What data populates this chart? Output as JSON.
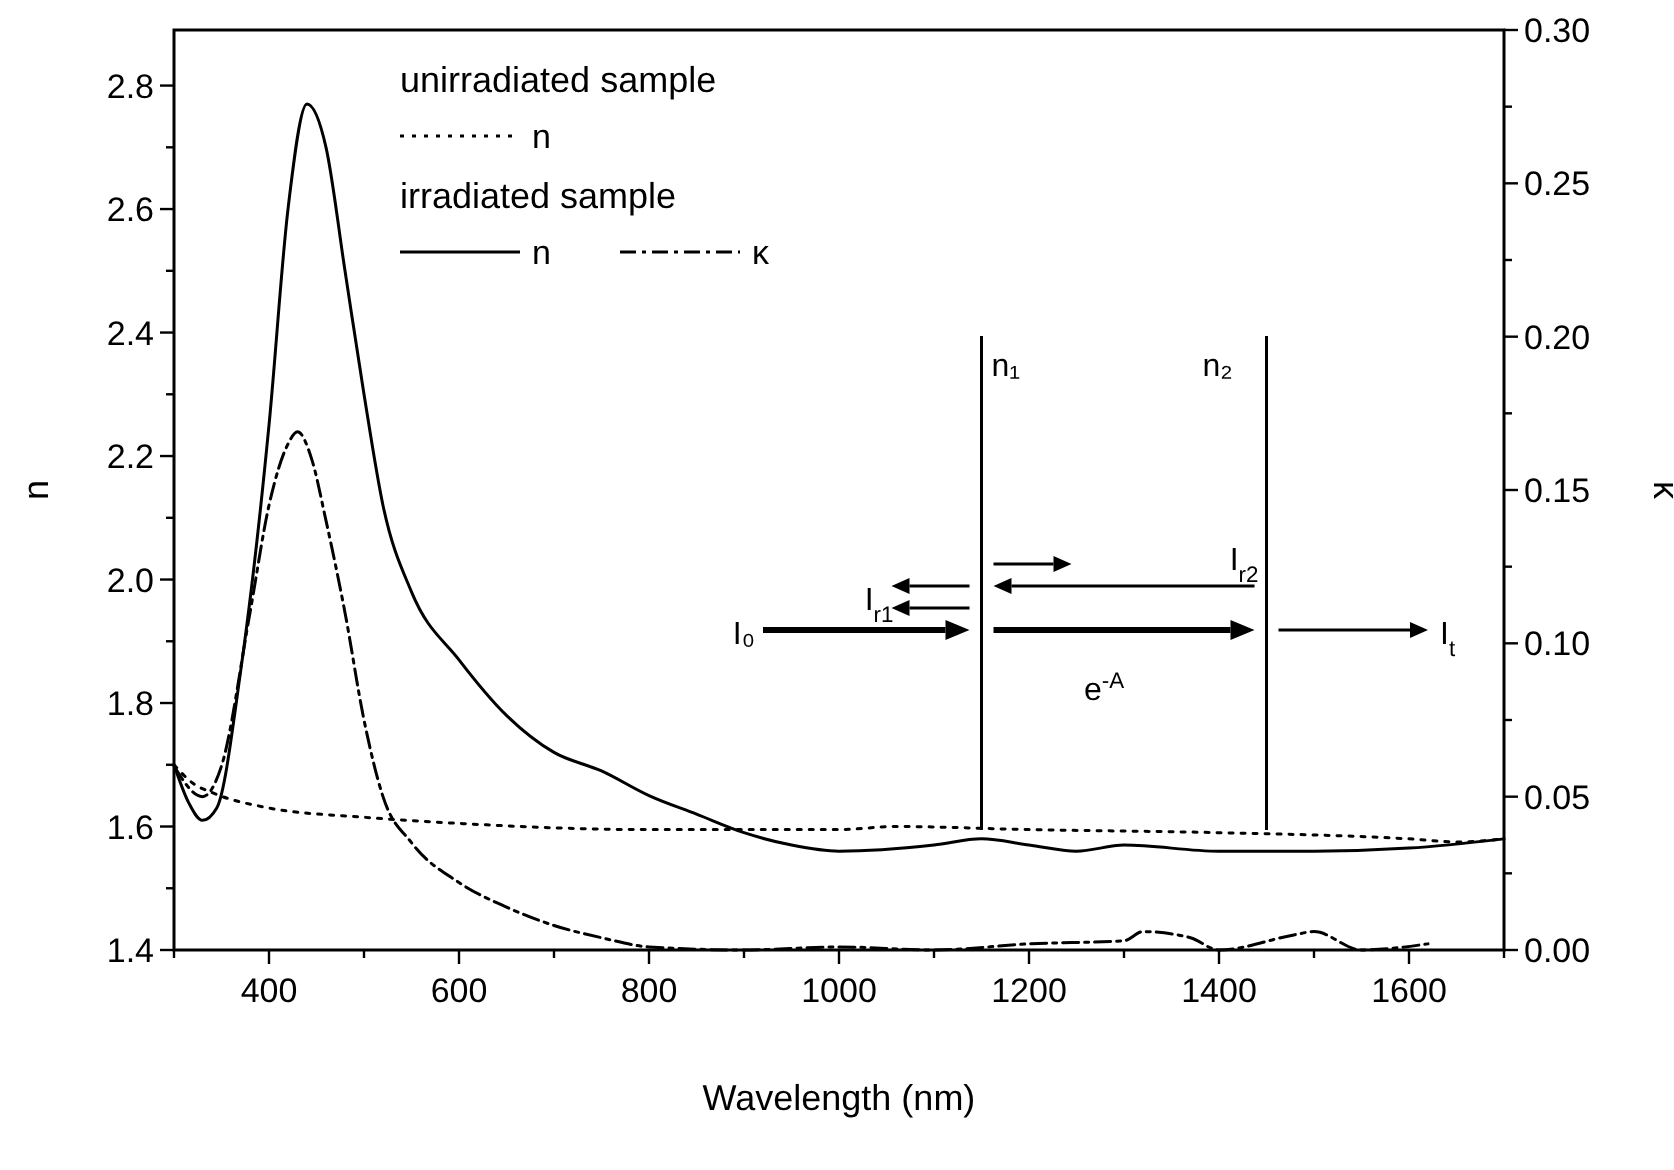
{
  "chart_data": {
    "type": "line",
    "xlabel": "Wavelength (nm)",
    "ylabel": "n",
    "y2label": "κ",
    "xlim": [
      300,
      1700
    ],
    "xticks": [
      {
        "value": 300,
        "label": null
      },
      400,
      {
        "value": 500,
        "label": null
      },
      600,
      {
        "value": 700,
        "label": null
      },
      800,
      {
        "value": 900,
        "label": null
      },
      1000,
      {
        "value": 1100,
        "label": null
      },
      1200,
      {
        "value": 1300,
        "label": null
      },
      1400,
      {
        "value": 1500,
        "label": null
      },
      1600,
      {
        "value": 1700,
        "label": null
      }
    ],
    "ylim": [
      1.4,
      2.89
    ],
    "yticks": [
      {
        "value": 1.4,
        "label": "1.4"
      },
      {
        "value": 1.5,
        "label": null
      },
      {
        "value": 1.6,
        "label": "1.6"
      },
      {
        "value": 1.7,
        "label": null
      },
      {
        "value": 1.8,
        "label": "1.8"
      },
      {
        "value": 1.9,
        "label": null
      },
      {
        "value": 2.0,
        "label": "2.0"
      },
      {
        "value": 2.1,
        "label": null
      },
      {
        "value": 2.2,
        "label": "2.2"
      },
      {
        "value": 2.3,
        "label": null
      },
      {
        "value": 2.4,
        "label": "2.4"
      },
      {
        "value": 2.5,
        "label": null
      },
      {
        "value": 2.6,
        "label": "2.6"
      },
      {
        "value": 2.7,
        "label": null
      },
      {
        "value": 2.8,
        "label": "2.8"
      }
    ],
    "y2lim": [
      0,
      0.3
    ],
    "y2ticks": [
      {
        "value": 0,
        "label": "0.00"
      },
      {
        "value": 0.025,
        "label": null
      },
      {
        "value": 0.05,
        "label": "0.05"
      },
      {
        "value": 0.075,
        "label": null
      },
      {
        "value": 0.1,
        "label": "0.10"
      },
      {
        "value": 0.125,
        "label": null
      },
      {
        "value": 0.15,
        "label": "0.15"
      },
      {
        "value": 0.175,
        "label": null
      },
      {
        "value": 0.2,
        "label": "0.20"
      },
      {
        "value": 0.225,
        "label": null
      },
      {
        "value": 0.25,
        "label": "0.25"
      },
      {
        "value": 0.275,
        "label": null
      },
      {
        "value": 0.3,
        "label": "0.30"
      }
    ],
    "grid": false,
    "ref_lines": [
      {
        "axis": "x",
        "value": 1150,
        "label": "n₁",
        "color": "#000000"
      },
      {
        "axis": "x",
        "value": 1450,
        "label": "n₂",
        "color": "#000000"
      }
    ],
    "legend": "top left",
    "series": [
      {
        "name": "n",
        "color": "#000000",
        "line_style": "dotted",
        "x": [
          300,
          320,
          340,
          400,
          500,
          600,
          800,
          1000,
          1060,
          1200,
          1400,
          1600,
          1650,
          1700
        ],
        "values": [
          1.7,
          1.67,
          1.655,
          1.63,
          1.615,
          1.605,
          1.595,
          1.595,
          1.6,
          1.595,
          1.59,
          1.58,
          1.575,
          1.58
        ]
      },
      {
        "name": "n",
        "color": "#000000",
        "line_style": "solid",
        "x": [
          300,
          315,
          330,
          345,
          370,
          400,
          420,
          440,
          460,
          480,
          500,
          520,
          550,
          600,
          650,
          700,
          750,
          800,
          850,
          900,
          950,
          1000,
          1100,
          1150,
          1200,
          1250,
          1300,
          1400,
          1500,
          1600,
          1700
        ],
        "values": [
          1.7,
          1.64,
          1.61,
          1.63,
          1.85,
          2.25,
          2.6,
          2.77,
          2.7,
          2.5,
          2.3,
          2.12,
          1.98,
          1.87,
          1.78,
          1.72,
          1.69,
          1.65,
          1.62,
          1.59,
          1.57,
          1.56,
          1.57,
          1.58,
          1.57,
          1.56,
          1.57,
          1.56,
          1.56,
          1.565,
          1.58
        ]
      },
      {
        "name": "κ",
        "color": "#000000",
        "line_style": "dashdot",
        "axis": "y2",
        "x": [
          300,
          330,
          350,
          380,
          400,
          420,
          430,
          445,
          460,
          480,
          500,
          520,
          550,
          600,
          650,
          700,
          750,
          800,
          900,
          1000,
          1100,
          1200,
          1300,
          1320,
          1370,
          1400,
          1480,
          1500,
          1550,
          1620
        ],
        "values": [
          0.06,
          0.05,
          0.06,
          0.11,
          0.145,
          0.165,
          0.169,
          0.16,
          0.14,
          0.11,
          0.075,
          0.05,
          0.035,
          0.022,
          0.014,
          0.008,
          0.004,
          0.001,
          0.0,
          0.001,
          0.0,
          0.002,
          0.003,
          0.006,
          0.004,
          0.0,
          0.005,
          0.006,
          0.0,
          0.002
        ]
      }
    ],
    "annotations": [
      "unirradiated sample",
      "irradiated sample",
      "I₀",
      "I$_{r1}$",
      "I$_{r2}$",
      "I$_{t}$",
      "e$^{-A}$"
    ]
  }
}
